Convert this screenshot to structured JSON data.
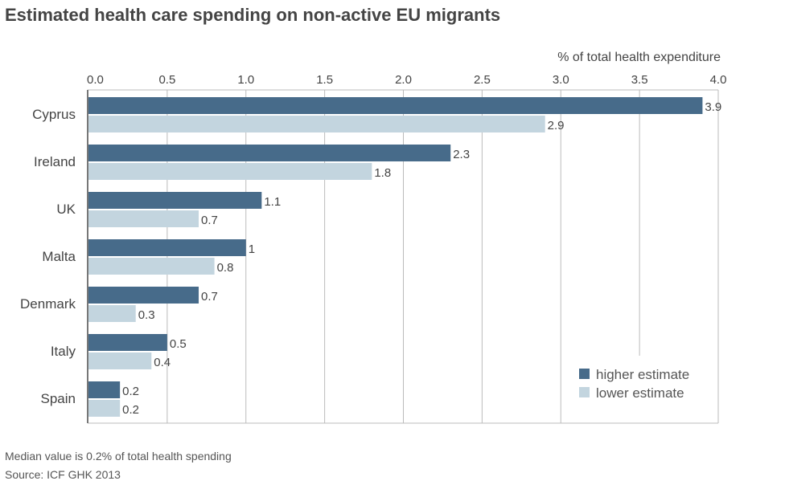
{
  "chart_data": {
    "type": "bar",
    "orientation": "horizontal",
    "title": "Estimated health care spending on non-active EU migrants",
    "xlabel": "% of total health expenditure",
    "xlim": [
      0,
      4.0
    ],
    "xticks": [
      "0.0",
      "0.5",
      "1.0",
      "1.5",
      "2.0",
      "2.5",
      "3.0",
      "3.5",
      "4.0"
    ],
    "axis_position": "top",
    "grid": true,
    "legend_placement": "bottom-right",
    "categories": [
      "Cyprus",
      "Ireland",
      "UK",
      "Malta",
      "Denmark",
      "Italy",
      "Spain"
    ],
    "series": [
      {
        "name": "higher estimate",
        "color": "#476b8a",
        "values": [
          3.9,
          2.3,
          1.1,
          1,
          0.7,
          0.5,
          0.2
        ]
      },
      {
        "name": "lower estimate",
        "color": "#c3d5df",
        "values": [
          2.9,
          1.8,
          0.7,
          0.8,
          0.3,
          0.4,
          0.2
        ]
      }
    ]
  },
  "footer": {
    "note": "Median value is 0.2% of total health spending",
    "source": "Source: ICF GHK 2013"
  }
}
